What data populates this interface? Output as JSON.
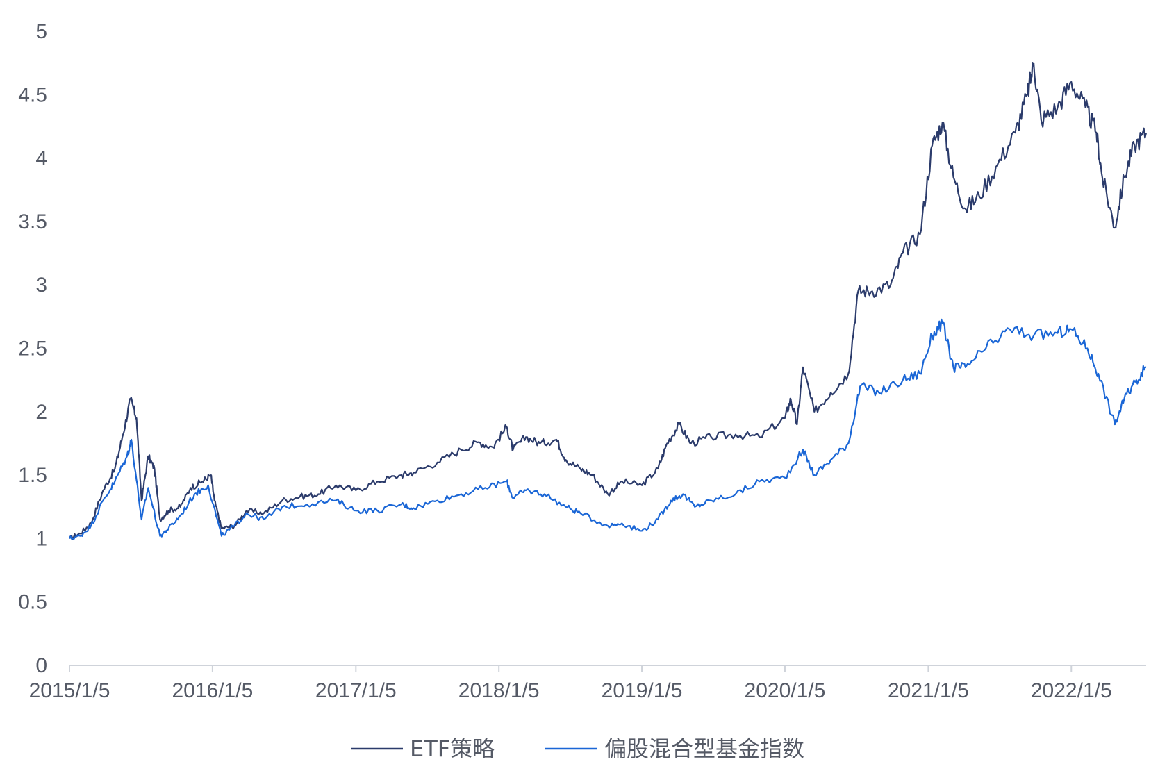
{
  "chart_data": {
    "type": "line",
    "title": "",
    "xlabel": "",
    "ylabel": "",
    "ylim": [
      0,
      5
    ],
    "yticks": [
      "0",
      "0.5",
      "1",
      "1.5",
      "2",
      "2.5",
      "3",
      "3.5",
      "4",
      "4.5",
      "5"
    ],
    "xticks": [
      "2015/1/5",
      "2016/1/5",
      "2017/1/5",
      "2018/1/5",
      "2019/1/5",
      "2020/1/5",
      "2021/1/5",
      "2022/1/5"
    ],
    "x_range": [
      "2015/1/5",
      "2022/7/15"
    ],
    "grid": false,
    "legend_position": "bottom-center",
    "series": [
      {
        "name": "ETF策略",
        "color": "#2b3b6b",
        "points": [
          [
            "2015/1/5",
            1.0
          ],
          [
            "2015/2/1",
            1.04
          ],
          [
            "2015/3/1",
            1.12
          ],
          [
            "2015/4/1",
            1.38
          ],
          [
            "2015/5/1",
            1.55
          ],
          [
            "2015/5/20",
            1.8
          ],
          [
            "2015/6/10",
            2.1
          ],
          [
            "2015/6/25",
            1.95
          ],
          [
            "2015/7/8",
            1.3
          ],
          [
            "2015/7/25",
            1.65
          ],
          [
            "2015/8/10",
            1.55
          ],
          [
            "2015/8/24",
            1.15
          ],
          [
            "2015/9/15",
            1.22
          ],
          [
            "2015/10/15",
            1.25
          ],
          [
            "2015/11/10",
            1.4
          ],
          [
            "2015/12/10",
            1.45
          ],
          [
            "2016/1/1",
            1.5
          ],
          [
            "2016/1/10",
            1.3
          ],
          [
            "2016/1/28",
            1.08
          ],
          [
            "2016/3/1",
            1.1
          ],
          [
            "2016/4/1",
            1.22
          ],
          [
            "2016/5/15",
            1.2
          ],
          [
            "2016/7/1",
            1.3
          ],
          [
            "2016/8/15",
            1.33
          ],
          [
            "2016/10/1",
            1.35
          ],
          [
            "2016/11/15",
            1.42
          ],
          [
            "2017/1/5",
            1.38
          ],
          [
            "2017/3/1",
            1.45
          ],
          [
            "2017/5/1",
            1.5
          ],
          [
            "2017/6/1",
            1.52
          ],
          [
            "2017/8/1",
            1.6
          ],
          [
            "2017/10/1",
            1.7
          ],
          [
            "2017/11/15",
            1.76
          ],
          [
            "2017/12/20",
            1.72
          ],
          [
            "2018/1/25",
            1.88
          ],
          [
            "2018/2/10",
            1.7
          ],
          [
            "2018/3/15",
            1.8
          ],
          [
            "2018/4/20",
            1.75
          ],
          [
            "2018/6/1",
            1.78
          ],
          [
            "2018/6/25",
            1.62
          ],
          [
            "2018/8/1",
            1.55
          ],
          [
            "2018/9/1",
            1.5
          ],
          [
            "2018/10/10",
            1.35
          ],
          [
            "2018/11/15",
            1.45
          ],
          [
            "2019/1/5",
            1.42
          ],
          [
            "2019/2/15",
            1.55
          ],
          [
            "2019/3/10",
            1.75
          ],
          [
            "2019/4/10",
            1.9
          ],
          [
            "2019/5/10",
            1.75
          ],
          [
            "2019/7/1",
            1.8
          ],
          [
            "2019/9/1",
            1.82
          ],
          [
            "2019/11/1",
            1.8
          ],
          [
            "2020/1/5",
            1.95
          ],
          [
            "2020/1/20",
            2.1
          ],
          [
            "2020/2/5",
            1.9
          ],
          [
            "2020/2/20",
            2.35
          ],
          [
            "2020/3/20",
            2.0
          ],
          [
            "2020/5/1",
            2.15
          ],
          [
            "2020/6/15",
            2.3
          ],
          [
            "2020/7/10",
            2.95
          ],
          [
            "2020/8/15",
            2.95
          ],
          [
            "2020/10/1",
            3.0
          ],
          [
            "2020/11/1",
            3.25
          ],
          [
            "2020/12/15",
            3.4
          ],
          [
            "2021/1/15",
            4.1
          ],
          [
            "2021/2/10",
            4.28
          ],
          [
            "2021/3/10",
            3.85
          ],
          [
            "2021/4/10",
            3.6
          ],
          [
            "2021/5/15",
            3.7
          ],
          [
            "2021/7/1",
            3.95
          ],
          [
            "2021/8/15",
            4.2
          ],
          [
            "2021/9/15",
            4.5
          ],
          [
            "2021/10/1",
            4.75
          ],
          [
            "2021/10/20",
            4.3
          ],
          [
            "2021/12/1",
            4.4
          ],
          [
            "2022/1/5",
            4.6
          ],
          [
            "2022/2/10",
            4.4
          ],
          [
            "2022/3/10",
            4.2
          ],
          [
            "2022/3/25",
            3.85
          ],
          [
            "2022/4/26",
            3.45
          ],
          [
            "2022/5/20",
            3.85
          ],
          [
            "2022/6/15",
            4.1
          ],
          [
            "2022/7/15",
            4.2
          ]
        ]
      },
      {
        "name": "偏股混合型基金指数",
        "color": "#1a66d6",
        "points": [
          [
            "2015/1/5",
            1.0
          ],
          [
            "2015/2/1",
            1.02
          ],
          [
            "2015/3/1",
            1.1
          ],
          [
            "2015/4/1",
            1.3
          ],
          [
            "2015/5/1",
            1.45
          ],
          [
            "2015/6/1",
            1.65
          ],
          [
            "2015/6/12",
            1.78
          ],
          [
            "2015/7/8",
            1.15
          ],
          [
            "2015/7/25",
            1.4
          ],
          [
            "2015/8/24",
            1.02
          ],
          [
            "2015/9/15",
            1.08
          ],
          [
            "2015/10/15",
            1.18
          ],
          [
            "2015/11/20",
            1.35
          ],
          [
            "2015/12/25",
            1.42
          ],
          [
            "2016/1/28",
            1.02
          ],
          [
            "2016/3/1",
            1.1
          ],
          [
            "2016/4/1",
            1.2
          ],
          [
            "2016/5/15",
            1.15
          ],
          [
            "2016/7/1",
            1.25
          ],
          [
            "2016/9/1",
            1.27
          ],
          [
            "2016/11/15",
            1.3
          ],
          [
            "2017/1/5",
            1.22
          ],
          [
            "2017/3/1",
            1.22
          ],
          [
            "2017/5/1",
            1.27
          ],
          [
            "2017/6/1",
            1.24
          ],
          [
            "2017/8/1",
            1.3
          ],
          [
            "2017/10/1",
            1.35
          ],
          [
            "2017/12/1",
            1.4
          ],
          [
            "2018/1/25",
            1.45
          ],
          [
            "2018/2/10",
            1.32
          ],
          [
            "2018/3/15",
            1.38
          ],
          [
            "2018/5/1",
            1.35
          ],
          [
            "2018/6/25",
            1.25
          ],
          [
            "2018/8/1",
            1.2
          ],
          [
            "2018/10/10",
            1.1
          ],
          [
            "2018/11/15",
            1.12
          ],
          [
            "2019/1/5",
            1.06
          ],
          [
            "2019/2/15",
            1.15
          ],
          [
            "2019/3/20",
            1.3
          ],
          [
            "2019/4/20",
            1.35
          ],
          [
            "2019/5/20",
            1.25
          ],
          [
            "2019/7/1",
            1.3
          ],
          [
            "2019/9/1",
            1.35
          ],
          [
            "2019/11/1",
            1.45
          ],
          [
            "2020/1/5",
            1.48
          ],
          [
            "2020/2/20",
            1.7
          ],
          [
            "2020/3/20",
            1.5
          ],
          [
            "2020/5/1",
            1.62
          ],
          [
            "2020/6/15",
            1.75
          ],
          [
            "2020/7/15",
            2.2
          ],
          [
            "2020/9/1",
            2.15
          ],
          [
            "2020/11/1",
            2.25
          ],
          [
            "2020/12/15",
            2.3
          ],
          [
            "2021/1/15",
            2.6
          ],
          [
            "2021/2/10",
            2.7
          ],
          [
            "2021/3/10",
            2.35
          ],
          [
            "2021/4/10",
            2.35
          ],
          [
            "2021/6/1",
            2.5
          ],
          [
            "2021/8/1",
            2.65
          ],
          [
            "2021/10/1",
            2.6
          ],
          [
            "2021/12/1",
            2.62
          ],
          [
            "2022/1/5",
            2.65
          ],
          [
            "2022/2/15",
            2.5
          ],
          [
            "2022/3/15",
            2.3
          ],
          [
            "2022/4/26",
            1.9
          ],
          [
            "2022/5/20",
            2.1
          ],
          [
            "2022/6/20",
            2.25
          ],
          [
            "2022/7/15",
            2.35
          ]
        ]
      }
    ]
  }
}
